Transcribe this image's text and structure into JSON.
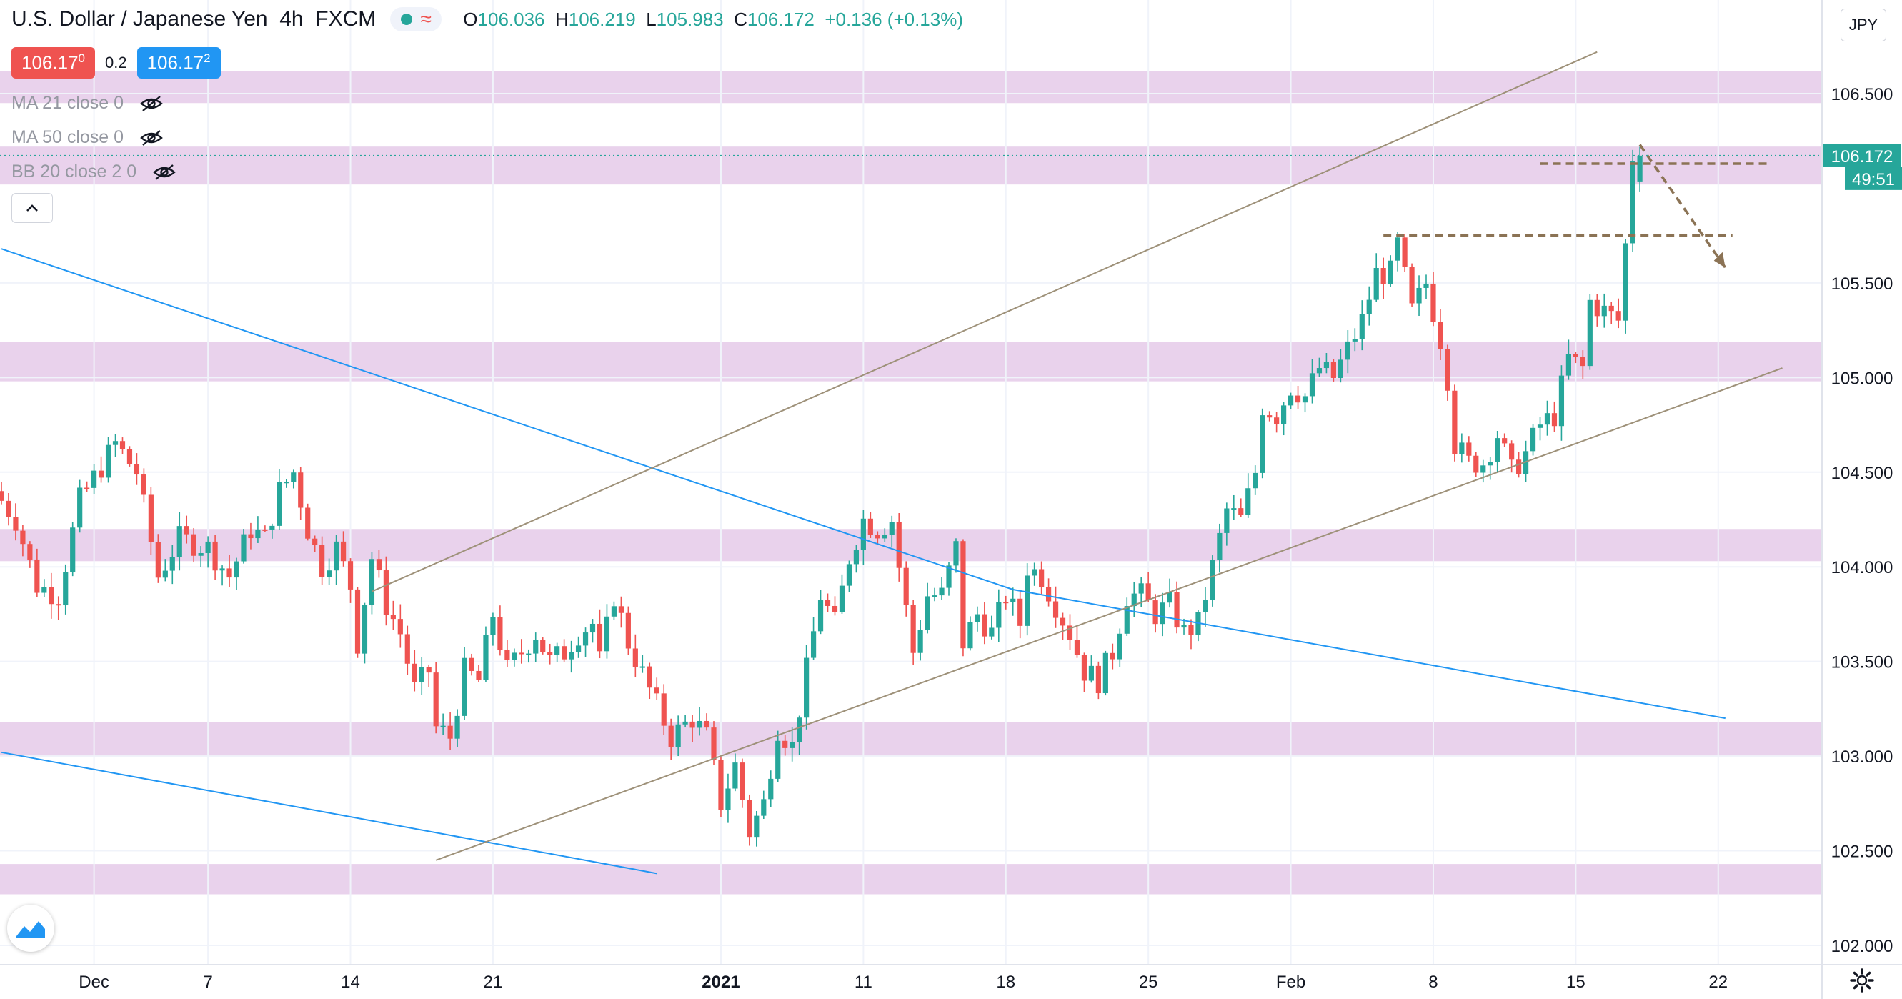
{
  "header": {
    "symbol_title": "U.S. Dollar / Japanese Yen",
    "interval": "4h",
    "exchange": "FXCM",
    "ohlc": {
      "o_label": "O",
      "o": "106.036",
      "h_label": "H",
      "h": "106.219",
      "l_label": "L",
      "l": "105.983",
      "c_label": "C",
      "c": "106.172",
      "change": "+0.136 (+0.13%)"
    }
  },
  "trade": {
    "sell_main": "106.17",
    "sell_sup": "0",
    "spread": "0.2",
    "buy_main": "106.17",
    "buy_sup": "2"
  },
  "indicators": [
    "MA 21 close 0",
    "MA 50 close 0",
    "BB 20 close 2 0"
  ],
  "currency_button": "JPY",
  "price_label": "106.172",
  "countdown_label": "49:51",
  "colors": {
    "up": "#26a69a",
    "down": "#ef5350",
    "zone": "#e9d2ec",
    "trendline": "#2196f3",
    "channel": "#9e9179",
    "projection": "#8b7355"
  },
  "chart_data": {
    "type": "candlestick",
    "title": "U.S. Dollar / Japanese Yen",
    "xlabel": "",
    "ylabel": "",
    "ylim": [
      102.0,
      106.7
    ],
    "y_ticks": [
      "102.000",
      "102.500",
      "103.000",
      "103.500",
      "104.000",
      "104.500",
      "105.000",
      "105.500",
      "106.500"
    ],
    "x_ticks": [
      {
        "label": "Dec",
        "i": 13
      },
      {
        "label": "7",
        "i": 29
      },
      {
        "label": "14",
        "i": 49
      },
      {
        "label": "21",
        "i": 69
      },
      {
        "label": "2021",
        "i": 101,
        "bold": true
      },
      {
        "label": "11",
        "i": 121
      },
      {
        "label": "18",
        "i": 141
      },
      {
        "label": "25",
        "i": 161
      },
      {
        "label": "Feb",
        "i": 181
      },
      {
        "label": "8",
        "i": 201
      },
      {
        "label": "15",
        "i": 221
      },
      {
        "label": "22",
        "i": 241
      }
    ],
    "candle_count": 231,
    "anchors": [
      [
        0,
        104.4
      ],
      [
        3,
        104.25
      ],
      [
        6,
        103.9
      ],
      [
        9,
        103.85
      ],
      [
        12,
        104.35
      ],
      [
        17,
        104.65
      ],
      [
        20,
        104.5
      ],
      [
        23,
        103.95
      ],
      [
        26,
        104.15
      ],
      [
        30,
        104.1
      ],
      [
        33,
        103.95
      ],
      [
        36,
        104.2
      ],
      [
        38,
        104.15
      ],
      [
        40,
        104.4
      ],
      [
        42,
        104.5
      ],
      [
        44,
        104.2
      ],
      [
        46,
        104.0
      ],
      [
        48,
        104.1
      ],
      [
        50,
        103.9
      ],
      [
        51,
        103.6
      ],
      [
        53,
        104.05
      ],
      [
        55,
        103.8
      ],
      [
        57,
        103.65
      ],
      [
        59,
        103.35
      ],
      [
        61,
        103.45
      ],
      [
        62,
        103.15
      ],
      [
        64,
        103.1
      ],
      [
        66,
        103.45
      ],
      [
        68,
        103.4
      ],
      [
        70,
        103.75
      ],
      [
        72,
        103.45
      ],
      [
        74,
        103.55
      ],
      [
        76,
        103.65
      ],
      [
        78,
        103.5
      ],
      [
        80,
        103.55
      ],
      [
        82,
        103.65
      ],
      [
        84,
        103.7
      ],
      [
        85,
        103.5
      ],
      [
        87,
        103.85
      ],
      [
        89,
        103.6
      ],
      [
        92,
        103.35
      ],
      [
        95,
        103.1
      ],
      [
        98,
        103.2
      ],
      [
        100,
        103.1
      ],
      [
        102,
        102.75
      ],
      [
        104,
        102.95
      ],
      [
        106,
        102.6
      ],
      [
        108,
        102.75
      ],
      [
        110,
        103.15
      ],
      [
        112,
        103.05
      ],
      [
        114,
        103.45
      ],
      [
        116,
        103.85
      ],
      [
        118,
        103.7
      ],
      [
        120,
        104.05
      ],
      [
        122,
        104.25
      ],
      [
        124,
        104.2
      ],
      [
        126,
        104.25
      ],
      [
        127,
        104.0
      ],
      [
        129,
        103.55
      ],
      [
        131,
        103.85
      ],
      [
        133,
        103.85
      ],
      [
        135,
        104.1
      ],
      [
        136,
        103.6
      ],
      [
        138,
        103.75
      ],
      [
        140,
        103.65
      ],
      [
        142,
        103.85
      ],
      [
        144,
        103.7
      ],
      [
        145,
        104.0
      ],
      [
        147,
        103.95
      ],
      [
        149,
        103.8
      ],
      [
        151,
        103.65
      ],
      [
        153,
        103.45
      ],
      [
        155,
        103.4
      ],
      [
        157,
        103.55
      ],
      [
        159,
        103.85
      ],
      [
        161,
        103.85
      ],
      [
        163,
        103.75
      ],
      [
        165,
        103.8
      ],
      [
        167,
        103.65
      ],
      [
        169,
        103.7
      ],
      [
        171,
        104.0
      ],
      [
        173,
        104.3
      ],
      [
        175,
        104.25
      ],
      [
        177,
        104.5
      ],
      [
        178,
        104.85
      ],
      [
        180,
        104.8
      ],
      [
        182,
        104.95
      ],
      [
        184,
        104.9
      ],
      [
        186,
        105.05
      ],
      [
        188,
        105.0
      ],
      [
        190,
        105.15
      ],
      [
        192,
        105.3
      ],
      [
        194,
        105.55
      ],
      [
        196,
        105.55
      ],
      [
        197,
        105.7
      ],
      [
        199,
        105.35
      ],
      [
        201,
        105.5
      ],
      [
        203,
        105.2
      ],
      [
        204,
        105.0
      ],
      [
        205,
        104.65
      ],
      [
        207,
        104.55
      ],
      [
        209,
        104.55
      ],
      [
        211,
        104.7
      ],
      [
        213,
        104.5
      ],
      [
        215,
        104.6
      ],
      [
        217,
        104.75
      ],
      [
        219,
        104.8
      ],
      [
        221,
        105.1
      ],
      [
        223,
        105.05
      ],
      [
        224,
        105.4
      ],
      [
        226,
        105.35
      ],
      [
        228,
        105.3
      ],
      [
        229,
        105.7
      ],
      [
        230,
        106.172
      ]
    ]
  }
}
